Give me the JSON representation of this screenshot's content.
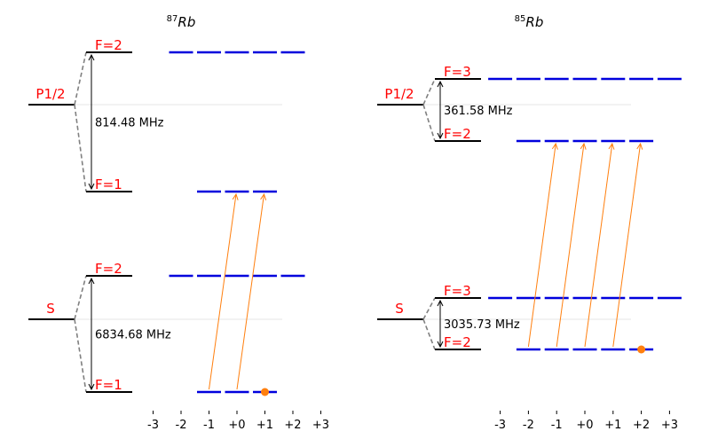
{
  "colors": {
    "level": "#000000",
    "label": "#ff0000",
    "sublevel": "#0000dd",
    "transition": "#ff7f0e",
    "population": "#ff7f0e",
    "connector": "#808080",
    "reference": "#dddddd"
  },
  "panels": [
    {
      "title_iso": "87",
      "title_el": "Rb",
      "axis_ticks": [
        "-3",
        "-2",
        "-1",
        "+0",
        "+1",
        "+2",
        "+3"
      ],
      "excited": {
        "label": "P1/2",
        "splitting": "814.48 MHz",
        "upper": {
          "label": "F=2",
          "mF": [
            -2,
            -1,
            0,
            1,
            2
          ]
        },
        "lower": {
          "label": "F=1",
          "mF": [
            -1,
            0,
            1
          ]
        }
      },
      "ground": {
        "label": "S",
        "splitting": "6834.68 MHz",
        "upper": {
          "label": "F=2",
          "mF": [
            -2,
            -1,
            0,
            1,
            2
          ]
        },
        "lower": {
          "label": "F=1",
          "mF": [
            -1,
            0,
            1
          ]
        }
      },
      "transitions": [
        {
          "from": "ground.lower",
          "mF_from": -1,
          "to": "excited.lower",
          "mF_to": 0
        },
        {
          "from": "ground.lower",
          "mF_from": 0,
          "to": "excited.lower",
          "mF_to": 1
        }
      ],
      "population": {
        "level": "ground.lower",
        "mF": 1
      }
    },
    {
      "title_iso": "85",
      "title_el": "Rb",
      "axis_ticks": [
        "-3",
        "-2",
        "-1",
        "+0",
        "+1",
        "+2",
        "+3"
      ],
      "excited": {
        "label": "P1/2",
        "splitting": "361.58 MHz",
        "upper": {
          "label": "F=3",
          "mF": [
            -3,
            -2,
            -1,
            0,
            1,
            2,
            3
          ]
        },
        "lower": {
          "label": "F=2",
          "mF": [
            -2,
            -1,
            0,
            1,
            2
          ]
        }
      },
      "ground": {
        "label": "S",
        "splitting": "3035.73 MHz",
        "upper": {
          "label": "F=3",
          "mF": [
            -3,
            -2,
            -1,
            0,
            1,
            2,
            3
          ]
        },
        "lower": {
          "label": "F=2",
          "mF": [
            -2,
            -1,
            0,
            1,
            2
          ]
        }
      },
      "transitions": [
        {
          "from": "ground.lower",
          "mF_from": -2,
          "to": "excited.lower",
          "mF_to": -1
        },
        {
          "from": "ground.lower",
          "mF_from": -1,
          "to": "excited.lower",
          "mF_to": 0
        },
        {
          "from": "ground.lower",
          "mF_from": 0,
          "to": "excited.lower",
          "mF_to": 1
        },
        {
          "from": "ground.lower",
          "mF_from": 1,
          "to": "excited.lower",
          "mF_to": 2
        }
      ],
      "population": {
        "level": "ground.lower",
        "mF": 2
      }
    }
  ]
}
